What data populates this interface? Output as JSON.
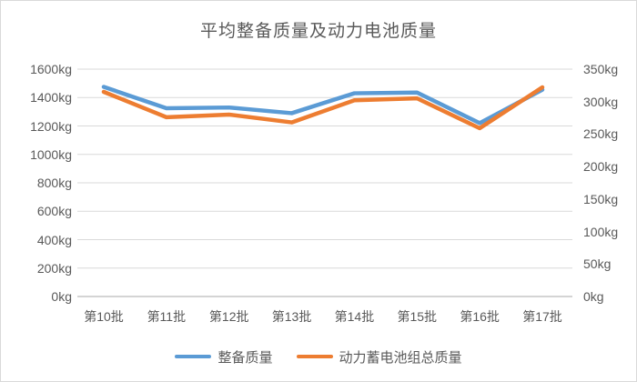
{
  "chart_data": {
    "type": "line",
    "title": "平均整备质量及动力电池质量",
    "categories": [
      "第10批",
      "第11批",
      "第12批",
      "第13批",
      "第14批",
      "第15批",
      "第16批",
      "第17批"
    ],
    "series": [
      {
        "name": "整备质量",
        "axis": "left",
        "color": "#5B9BD5",
        "values": [
          1475,
          1325,
          1330,
          1290,
          1430,
          1435,
          1220,
          1455
        ]
      },
      {
        "name": "动力蓄电池组总质量",
        "axis": "right",
        "color": "#ED7D31",
        "values": [
          315,
          276,
          280,
          268,
          302,
          305,
          259,
          322
        ]
      }
    ],
    "left_axis": {
      "min": 0,
      "max": 1600,
      "step": 200,
      "unit": "kg",
      "tick_labels_top_to_bottom": [
        "1600kg",
        "1400kg",
        "1200kg",
        "1000kg",
        "800kg",
        "600kg",
        "400kg",
        "200kg",
        "0kg"
      ]
    },
    "right_axis": {
      "min": 0,
      "max": 350,
      "step": 50,
      "unit": "kg",
      "tick_labels_top_to_bottom": [
        "350kg",
        "300kg",
        "250kg",
        "200kg",
        "150kg",
        "100kg",
        "50kg",
        "0kg"
      ]
    },
    "grid": true,
    "legend_position": "bottom"
  },
  "colors": {
    "gridline": "#D9D9D9",
    "axis_line": "#C6C6C6",
    "text": "#595959",
    "background": "#FFFFFF",
    "border": "#D9D9D9"
  }
}
